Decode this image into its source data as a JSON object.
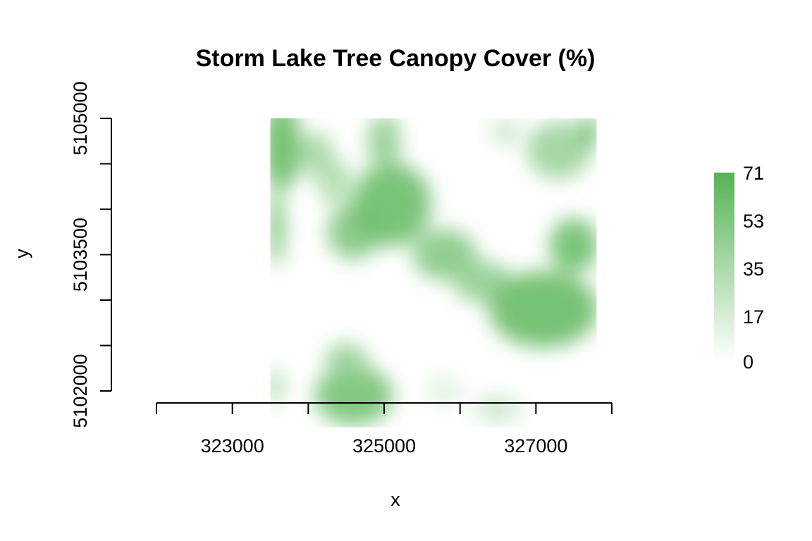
{
  "chart_data": {
    "type": "heatmap",
    "title": "Storm Lake Tree Canopy Cover (%)",
    "xlabel": "x",
    "ylabel": "y",
    "xlim": [
      322000,
      328000
    ],
    "ylim": [
      5101600,
      5105500
    ],
    "x_ticks": [
      322000,
      323000,
      324000,
      325000,
      326000,
      327000,
      328000
    ],
    "x_tick_labels": [
      "",
      "323000",
      "",
      "325000",
      "",
      "327000",
      ""
    ],
    "y_ticks": [
      5101600,
      5102000,
      5102500,
      5103000,
      5103500,
      5104000,
      5104500,
      5105000
    ],
    "y_tick_labels": [
      "",
      "5102000",
      "",
      "",
      "5103500",
      "",
      "",
      "5105000"
    ],
    "raster_extent": {
      "xmin": 323500,
      "xmax": 327800,
      "ymin": 5101600,
      "ymax": 5105000
    },
    "value_range": [
      0,
      71
    ],
    "color_low": "#ffffff",
    "color_high": "#55b353",
    "legend": {
      "placement": "right",
      "ticks": [
        0,
        17,
        35,
        53,
        71
      ],
      "tick_labels": [
        "0",
        "17",
        "35",
        "53",
        "71"
      ]
    },
    "grid": false,
    "canopy_patches": [
      {
        "x": 323650,
        "y": 5104700,
        "rx": 250,
        "ry": 500,
        "value": 62
      },
      {
        "x": 323580,
        "y": 5103800,
        "rx": 110,
        "ry": 420,
        "value": 55
      },
      {
        "x": 324100,
        "y": 5104600,
        "rx": 220,
        "ry": 250,
        "value": 38
      },
      {
        "x": 324350,
        "y": 5104300,
        "rx": 230,
        "ry": 260,
        "value": 32
      },
      {
        "x": 324600,
        "y": 5103750,
        "rx": 350,
        "ry": 300,
        "value": 52
      },
      {
        "x": 325100,
        "y": 5104050,
        "rx": 520,
        "ry": 460,
        "value": 60
      },
      {
        "x": 325000,
        "y": 5104750,
        "rx": 220,
        "ry": 300,
        "value": 45
      },
      {
        "x": 325800,
        "y": 5103500,
        "rx": 420,
        "ry": 280,
        "value": 50
      },
      {
        "x": 326300,
        "y": 5103200,
        "rx": 380,
        "ry": 230,
        "value": 45
      },
      {
        "x": 327100,
        "y": 5102900,
        "rx": 720,
        "ry": 420,
        "value": 62
      },
      {
        "x": 327500,
        "y": 5103600,
        "rx": 320,
        "ry": 300,
        "value": 60
      },
      {
        "x": 327300,
        "y": 5104650,
        "rx": 420,
        "ry": 320,
        "value": 40
      },
      {
        "x": 327700,
        "y": 5104850,
        "rx": 110,
        "ry": 200,
        "value": 65
      },
      {
        "x": 326600,
        "y": 5104850,
        "rx": 200,
        "ry": 150,
        "value": 22
      },
      {
        "x": 324600,
        "y": 5101950,
        "rx": 520,
        "ry": 330,
        "value": 56
      },
      {
        "x": 324500,
        "y": 5102350,
        "rx": 280,
        "ry": 180,
        "value": 42
      },
      {
        "x": 325800,
        "y": 5102000,
        "rx": 250,
        "ry": 170,
        "value": 12
      },
      {
        "x": 326500,
        "y": 5101800,
        "rx": 300,
        "ry": 150,
        "value": 22
      },
      {
        "x": 323570,
        "y": 5102050,
        "rx": 80,
        "ry": 200,
        "value": 45
      }
    ]
  }
}
